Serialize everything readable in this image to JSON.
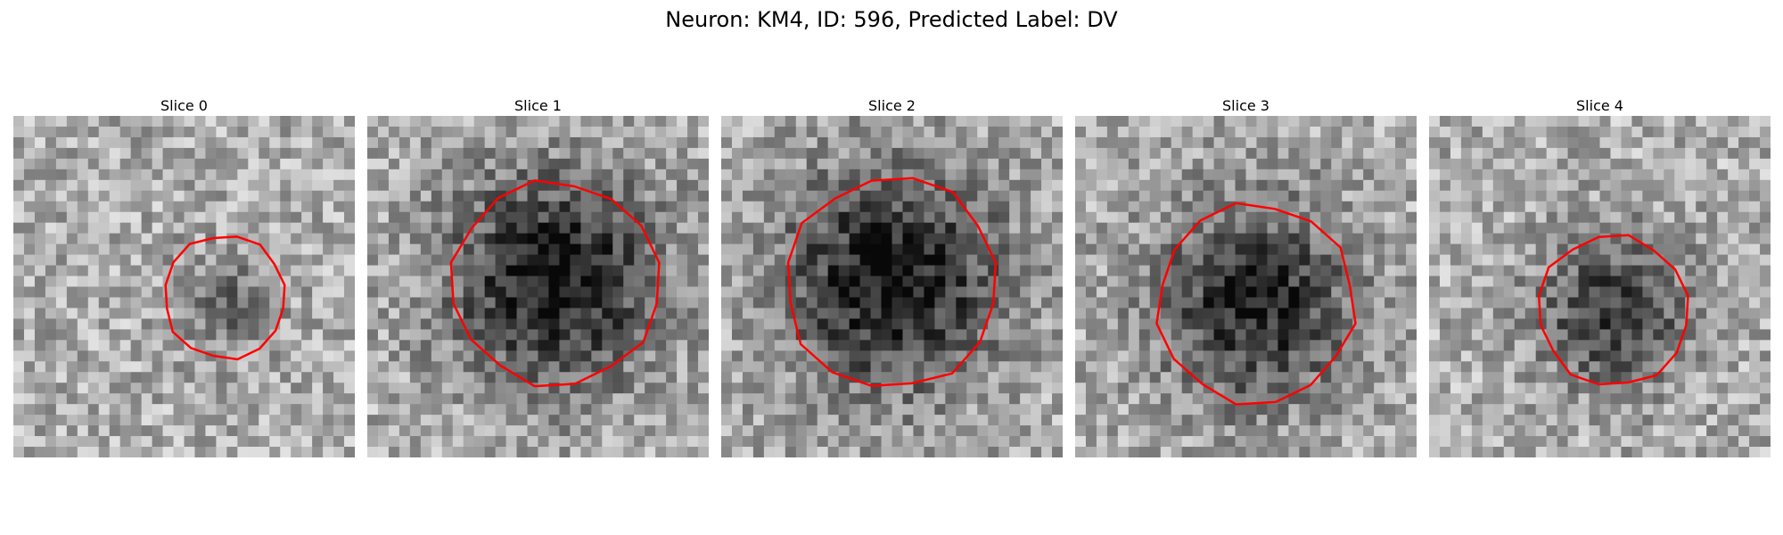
{
  "figure": {
    "title": "Neuron: KM4, ID: 596, Predicted Label: DV"
  },
  "contour_color": "#ff0000",
  "colormap": "gray",
  "panels": [
    {
      "title": "Slice 0",
      "blob_center": [
        0.62,
        0.55
      ],
      "blob_radius": 0.13,
      "blob_strength": 0.28,
      "contour_center": [
        0.62,
        0.53
      ],
      "contour_radius": 0.18
    },
    {
      "title": "Slice 1",
      "blob_center": [
        0.55,
        0.48
      ],
      "blob_radius": 0.29,
      "blob_strength": 0.62,
      "contour_center": [
        0.55,
        0.49
      ],
      "contour_radius": 0.3
    },
    {
      "title": "Slice 2",
      "blob_center": [
        0.5,
        0.48
      ],
      "blob_radius": 0.3,
      "blob_strength": 0.62,
      "contour_center": [
        0.5,
        0.49
      ],
      "contour_radius": 0.31
    },
    {
      "title": "Slice 3",
      "blob_center": [
        0.53,
        0.55
      ],
      "blob_radius": 0.27,
      "blob_strength": 0.55,
      "contour_center": [
        0.53,
        0.55
      ],
      "contour_radius": 0.29
    },
    {
      "title": "Slice 4",
      "blob_center": [
        0.54,
        0.57
      ],
      "blob_radius": 0.2,
      "blob_strength": 0.48,
      "contour_center": [
        0.54,
        0.57
      ],
      "contour_radius": 0.22
    }
  ]
}
